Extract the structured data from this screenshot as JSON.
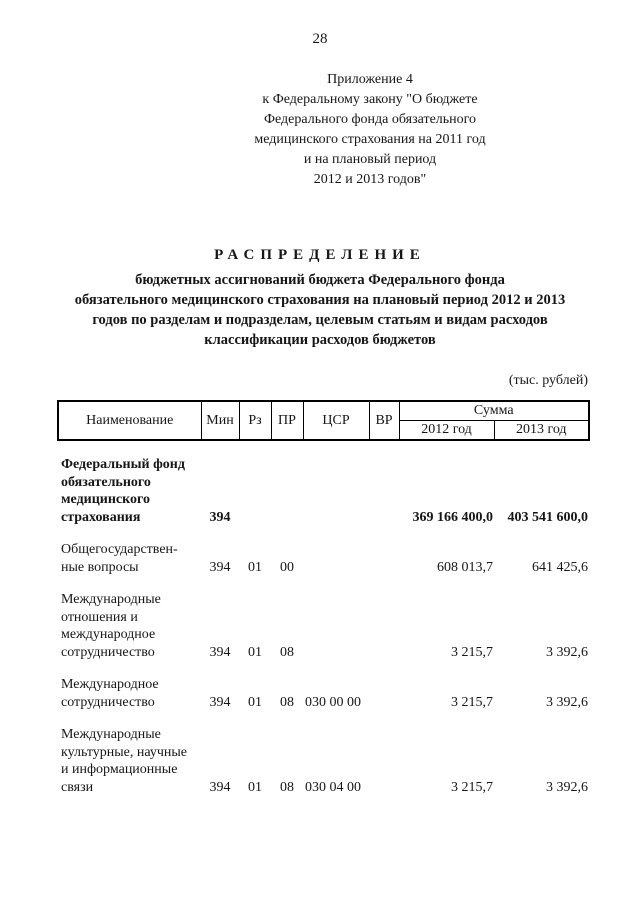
{
  "page_number": "28",
  "appendix": {
    "text": "Приложение 4\nк Федеральному закону \"О бюджете\nФедерального фонда обязательного\nмедицинского страхования на 2011 год\nи на плановый период\n2012 и 2013 годов\""
  },
  "title": {
    "heading": "РАСПРЕДЕЛЕНИЕ",
    "subtitle": "бюджетных ассигнований бюджета Федерального фонда\nобязательного медицинского страхования на плановый период 2012 и 2013\nгодов по разделам и подразделам, целевым статьям и видам расходов\nклассификации расходов бюджетов"
  },
  "units_note": "(тыс. рублей)",
  "table": {
    "columns": {
      "name": "Наименование",
      "min": "Мин",
      "rz": "Рз",
      "pr": "ПР",
      "tsr": "ЦСР",
      "vr": "ВР",
      "sum": "Сумма",
      "y2012": "2012 год",
      "y2013": "2013 год"
    },
    "rows": [
      {
        "name": "Федеральный фонд\nобязательного\nмедицинского\nстрахования",
        "min": "394",
        "rz": "",
        "pr": "",
        "tsr": "",
        "y2012": "369 166 400,0",
        "y2013": "403 541 600,0"
      },
      {
        "name": "Общегосударствен-\nные вопросы",
        "min": "394",
        "rz": "01",
        "pr": "00",
        "tsr": "",
        "y2012": "608 013,7",
        "y2013": "641 425,6"
      },
      {
        "name": "Международные\nотношения и\nмеждународное\nсотрудничество",
        "min": "394",
        "rz": "01",
        "pr": "08",
        "tsr": "",
        "y2012": "3 215,7",
        "y2013": "3 392,6"
      },
      {
        "name": "Международное\nсотрудничество",
        "min": "394",
        "rz": "01",
        "pr": "08",
        "tsr": "030 00 00",
        "y2012": "3 215,7",
        "y2013": "3 392,6"
      },
      {
        "name": "Международные\nкультурные, научные\nи информационные\nсвязи",
        "min": "394",
        "rz": "01",
        "pr": "08",
        "tsr": "030 04 00",
        "y2012": "3 215,7",
        "y2013": "3 392,6"
      }
    ]
  }
}
